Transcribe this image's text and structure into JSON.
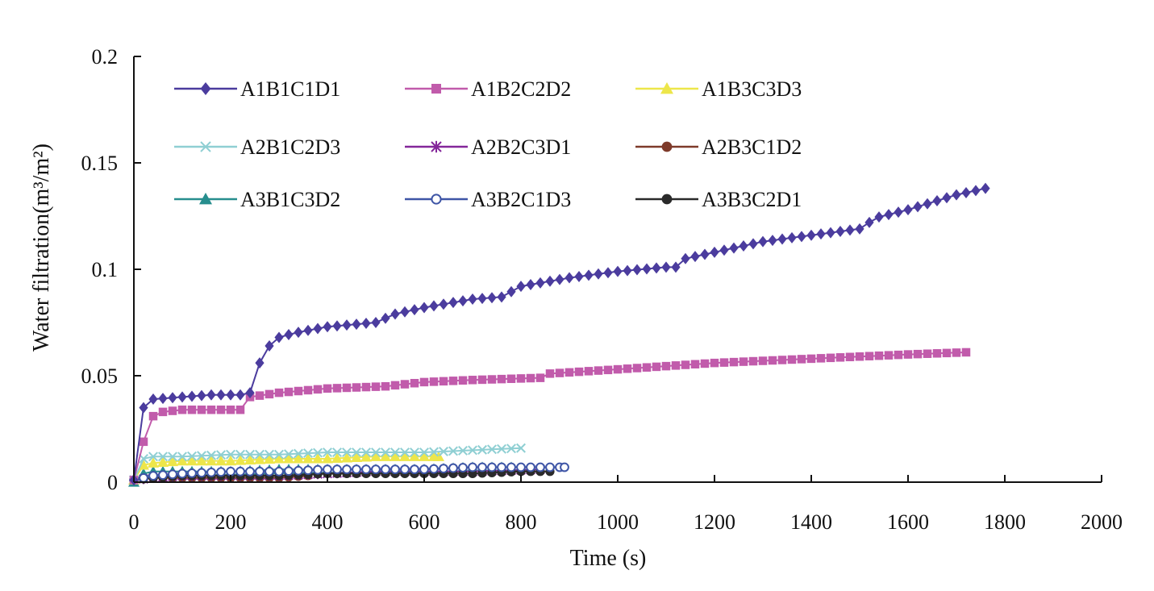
{
  "chart_data": {
    "type": "line",
    "title": "",
    "xlabel": "Time (s)",
    "ylabel": "Water filtration(m³/m²)",
    "xlim": [
      0,
      2000
    ],
    "ylim": [
      0,
      0.2
    ],
    "xticks": [
      0,
      200,
      400,
      600,
      800,
      1000,
      1200,
      1400,
      1600,
      1800,
      2000
    ],
    "yticks": [
      0,
      0.05,
      0.1,
      0.15,
      0.2
    ],
    "ytick_labels": [
      "0",
      "0.05",
      "0.1",
      "0.15",
      "0.2"
    ],
    "grid": false,
    "legend_position": "top-left",
    "series": [
      {
        "name": "A1B1C1D1",
        "color": "#4B3C9E",
        "marker": "diamond",
        "step": 20,
        "keypoints": [
          [
            0,
            0.001
          ],
          [
            20,
            0.035
          ],
          [
            40,
            0.039
          ],
          [
            100,
            0.04
          ],
          [
            160,
            0.041
          ],
          [
            230,
            0.041
          ],
          [
            240,
            0.042
          ],
          [
            260,
            0.056
          ],
          [
            280,
            0.064
          ],
          [
            300,
            0.068
          ],
          [
            330,
            0.07
          ],
          [
            400,
            0.073
          ],
          [
            500,
            0.075
          ],
          [
            540,
            0.079
          ],
          [
            600,
            0.082
          ],
          [
            700,
            0.086
          ],
          [
            760,
            0.087
          ],
          [
            800,
            0.092
          ],
          [
            900,
            0.096
          ],
          [
            1000,
            0.099
          ],
          [
            1100,
            0.101
          ],
          [
            1120,
            0.101
          ],
          [
            1140,
            0.105
          ],
          [
            1200,
            0.108
          ],
          [
            1300,
            0.113
          ],
          [
            1400,
            0.116
          ],
          [
            1500,
            0.119
          ],
          [
            1510,
            0.12
          ],
          [
            1530,
            0.124
          ],
          [
            1600,
            0.128
          ],
          [
            1700,
            0.135
          ],
          [
            1760,
            0.138
          ]
        ]
      },
      {
        "name": "A1B2C2D2",
        "color": "#C15BAB",
        "marker": "square",
        "step": 20,
        "keypoints": [
          [
            0,
            0.001
          ],
          [
            20,
            0.019
          ],
          [
            40,
            0.031
          ],
          [
            60,
            0.033
          ],
          [
            100,
            0.034
          ],
          [
            220,
            0.034
          ],
          [
            240,
            0.04
          ],
          [
            300,
            0.042
          ],
          [
            400,
            0.044
          ],
          [
            520,
            0.045
          ],
          [
            560,
            0.046
          ],
          [
            600,
            0.047
          ],
          [
            700,
            0.048
          ],
          [
            840,
            0.049
          ],
          [
            860,
            0.051
          ],
          [
            1000,
            0.053
          ],
          [
            1200,
            0.056
          ],
          [
            1400,
            0.058
          ],
          [
            1600,
            0.06
          ],
          [
            1720,
            0.061
          ]
        ]
      },
      {
        "name": "A1B3C3D3",
        "color": "#EDE64A",
        "marker": "triangle",
        "step": 20,
        "keypoints": [
          [
            0,
            0.001
          ],
          [
            20,
            0.008
          ],
          [
            40,
            0.009
          ],
          [
            100,
            0.01
          ],
          [
            200,
            0.01
          ],
          [
            300,
            0.011
          ],
          [
            400,
            0.011
          ],
          [
            500,
            0.012
          ],
          [
            630,
            0.012
          ]
        ]
      },
      {
        "name": "A2B1C2D3",
        "color": "#8FCFD3",
        "marker": "x",
        "step": 20,
        "keypoints": [
          [
            0,
            0.001
          ],
          [
            20,
            0.011
          ],
          [
            40,
            0.012
          ],
          [
            100,
            0.012
          ],
          [
            200,
            0.013
          ],
          [
            300,
            0.013
          ],
          [
            400,
            0.014
          ],
          [
            500,
            0.014
          ],
          [
            600,
            0.014
          ],
          [
            700,
            0.015
          ],
          [
            800,
            0.016
          ]
        ]
      },
      {
        "name": "A2B2C3D1",
        "color": "#84279A",
        "marker": "star",
        "step": 20,
        "keypoints": [
          [
            0,
            0.001
          ],
          [
            40,
            0.002
          ],
          [
            100,
            0.003
          ],
          [
            200,
            0.003
          ],
          [
            300,
            0.003
          ],
          [
            400,
            0.004
          ],
          [
            500,
            0.005
          ],
          [
            600,
            0.005
          ],
          [
            700,
            0.005
          ],
          [
            840,
            0.006
          ]
        ]
      },
      {
        "name": "A2B3C1D2",
        "color": "#7E3A2A",
        "marker": "circle",
        "step": 20,
        "keypoints": [
          [
            0,
            0.001
          ],
          [
            40,
            0.002
          ],
          [
            100,
            0.002
          ],
          [
            200,
            0.002
          ],
          [
            300,
            0.002
          ],
          [
            360,
            0.003
          ]
        ]
      },
      {
        "name": "A3B1C3D2",
        "color": "#278E8E",
        "marker": "triangle",
        "step": 20,
        "keypoints": [
          [
            0,
            0.0
          ],
          [
            20,
            0.004
          ],
          [
            40,
            0.005
          ],
          [
            100,
            0.005
          ],
          [
            200,
            0.005
          ],
          [
            300,
            0.006
          ],
          [
            400,
            0.006
          ],
          [
            500,
            0.006
          ],
          [
            600,
            0.006
          ],
          [
            700,
            0.007
          ],
          [
            780,
            0.007
          ]
        ]
      },
      {
        "name": "A3B2C1D3",
        "color": "#3E55A6",
        "marker": "circle-open",
        "step": 20,
        "keypoints": [
          [
            0,
            0.001
          ],
          [
            40,
            0.003
          ],
          [
            100,
            0.004
          ],
          [
            200,
            0.005
          ],
          [
            300,
            0.005
          ],
          [
            400,
            0.006
          ],
          [
            500,
            0.006
          ],
          [
            600,
            0.006
          ],
          [
            700,
            0.007
          ],
          [
            800,
            0.007
          ],
          [
            890,
            0.007
          ]
        ]
      },
      {
        "name": "A3B3C2D1",
        "color": "#2A2A2A",
        "marker": "circle",
        "step": 20,
        "keypoints": [
          [
            0,
            0.001
          ],
          [
            40,
            0.002
          ],
          [
            100,
            0.003
          ],
          [
            200,
            0.003
          ],
          [
            300,
            0.003
          ],
          [
            400,
            0.004
          ],
          [
            500,
            0.004
          ],
          [
            600,
            0.004
          ],
          [
            700,
            0.004
          ],
          [
            800,
            0.005
          ],
          [
            860,
            0.005
          ]
        ]
      }
    ]
  }
}
